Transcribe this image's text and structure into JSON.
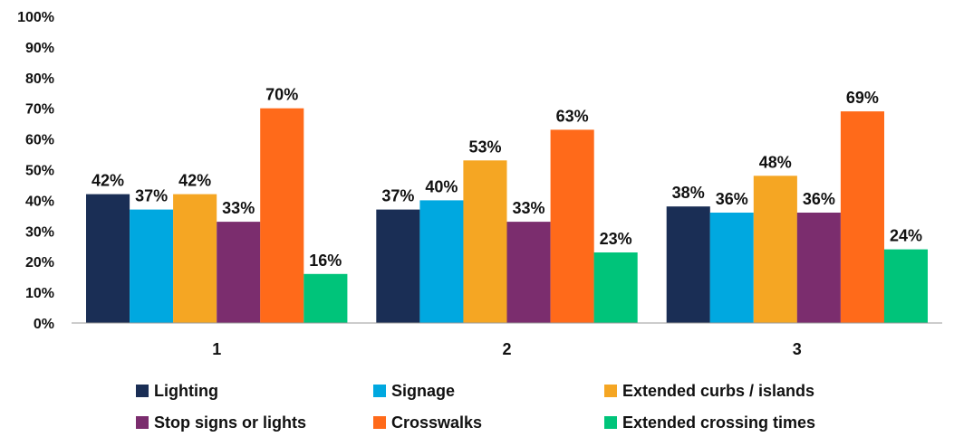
{
  "chart_data": {
    "type": "bar",
    "title": "",
    "xlabel": "",
    "ylabel": "",
    "categories": [
      "1",
      "2",
      "3"
    ],
    "ylim": [
      0,
      100
    ],
    "yticks": [
      "0%",
      "10%",
      "20%",
      "30%",
      "40%",
      "50%",
      "60%",
      "70%",
      "80%",
      "90%",
      "100%"
    ],
    "value_suffix": "%",
    "grid": false,
    "legend_position": "bottom",
    "series": [
      {
        "name": "Lighting",
        "color": "#1a2e55",
        "values": [
          42,
          37,
          38
        ]
      },
      {
        "name": "Signage",
        "color": "#00a8e0",
        "values": [
          37,
          40,
          36
        ]
      },
      {
        "name": "Extended curbs / islands",
        "color": "#f5a623",
        "values": [
          42,
          53,
          48
        ]
      },
      {
        "name": "Stop signs or lights",
        "color": "#7b2d6e",
        "values": [
          33,
          33,
          36
        ]
      },
      {
        "name": "Crosswalks",
        "color": "#ff6a1a",
        "values": [
          70,
          63,
          69
        ]
      },
      {
        "name": "Extended crossing times",
        "color": "#00c47a",
        "values": [
          16,
          23,
          24
        ]
      }
    ]
  }
}
